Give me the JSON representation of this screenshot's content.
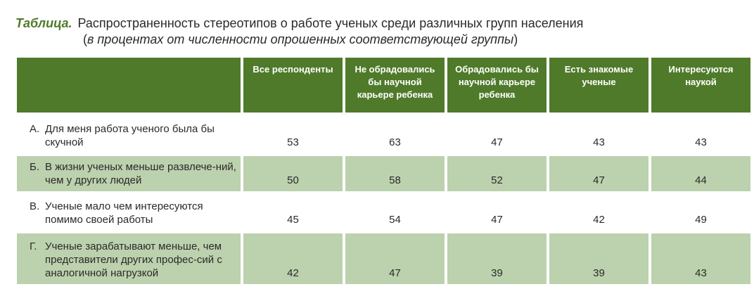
{
  "caption": {
    "label": "Таблица.",
    "title": "Распространенность стереотипов о работе ученых среди различных групп населения",
    "subtitle_open": "(",
    "subtitle": "в процентах от численности опрошенных соответствующей группы",
    "subtitle_close": ")"
  },
  "table": {
    "columns": [
      "Все респонденты",
      "Не обрадовались бы научной карьере ребенка",
      "Обрадовались бы научной карьере ребенка",
      "Есть знакомые ученые",
      "Интересуются наукой"
    ],
    "rows": [
      {
        "letter": "А.",
        "text": "Для меня работа ученого была бы скучной",
        "values": [
          "53",
          "63",
          "47",
          "43",
          "43"
        ],
        "shaded": false
      },
      {
        "letter": "Б.",
        "text": "В жизни ученых меньше развлече-ний, чем у других людей",
        "values": [
          "50",
          "58",
          "52",
          "47",
          "44"
        ],
        "shaded": true
      },
      {
        "letter": "В.",
        "text": "Ученые мало чем интересуются помимо своей работы",
        "values": [
          "45",
          "54",
          "47",
          "42",
          "49"
        ],
        "shaded": false
      },
      {
        "letter": "Г.",
        "text": "Ученые зарабатывают меньше, чем представители других профес-сий с аналогичной нагрузкой",
        "values": [
          "42",
          "47",
          "39",
          "39",
          "43"
        ],
        "shaded": true
      }
    ]
  },
  "colors": {
    "header": "#4f7a2a",
    "shade": "#bcd1ad",
    "label": "#4f7a2a"
  }
}
